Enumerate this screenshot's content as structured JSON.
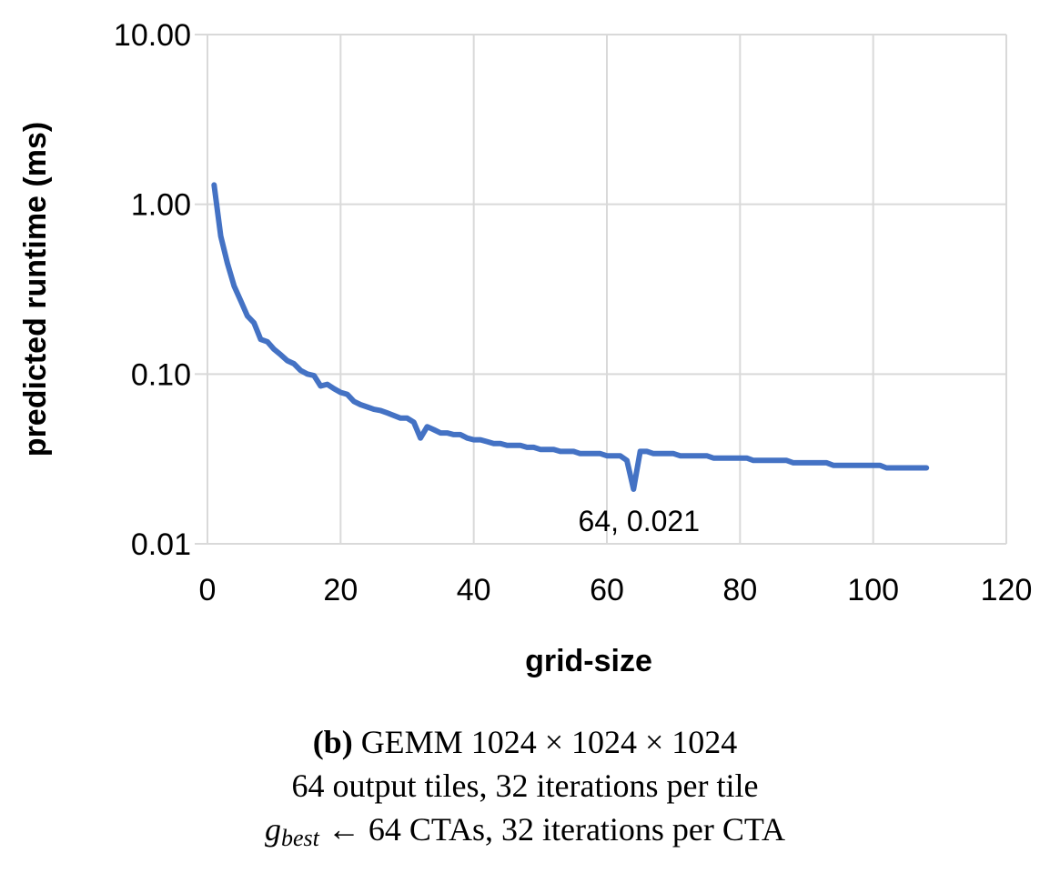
{
  "chart_data": {
    "type": "line",
    "xlabel": "grid-size",
    "ylabel": "predicted runtime (ms)",
    "xlim": [
      0,
      120
    ],
    "ylim": [
      0.01,
      10
    ],
    "yscale": "log",
    "xticks": [
      "0",
      "20",
      "40",
      "60",
      "80",
      "100",
      "120"
    ],
    "yticks": [
      "0.01",
      "0.10",
      "1.00",
      "10.00"
    ],
    "grid": true,
    "color": "#4472C4",
    "series": [
      {
        "x": [
          1,
          2,
          3,
          4,
          5,
          6,
          7,
          8,
          9,
          10,
          11,
          12,
          13,
          14,
          15,
          16,
          17,
          18,
          19,
          20,
          21,
          22,
          23,
          24,
          25,
          26,
          27,
          28,
          29,
          30,
          31,
          32,
          33,
          34,
          35,
          36,
          37,
          38,
          39,
          40,
          41,
          42,
          43,
          44,
          45,
          46,
          47,
          48,
          49,
          50,
          51,
          52,
          53,
          54,
          55,
          56,
          57,
          58,
          59,
          60,
          61,
          62,
          63,
          64,
          65,
          66,
          67,
          68,
          69,
          70,
          71,
          72,
          73,
          74,
          75,
          76,
          77,
          78,
          79,
          80,
          81,
          82,
          83,
          84,
          85,
          86,
          87,
          88,
          89,
          90,
          91,
          92,
          93,
          94,
          95,
          96,
          97,
          98,
          99,
          100,
          101,
          102,
          103,
          104,
          105,
          106,
          107,
          108
        ],
        "y": [
          1.3,
          0.65,
          0.45,
          0.33,
          0.27,
          0.22,
          0.2,
          0.16,
          0.155,
          0.14,
          0.13,
          0.12,
          0.115,
          0.105,
          0.1,
          0.098,
          0.085,
          0.087,
          0.082,
          0.078,
          0.076,
          0.069,
          0.066,
          0.064,
          0.062,
          0.061,
          0.059,
          0.057,
          0.055,
          0.055,
          0.052,
          0.042,
          0.049,
          0.047,
          0.045,
          0.045,
          0.044,
          0.044,
          0.042,
          0.041,
          0.041,
          0.04,
          0.039,
          0.039,
          0.038,
          0.038,
          0.038,
          0.037,
          0.037,
          0.036,
          0.036,
          0.036,
          0.035,
          0.035,
          0.035,
          0.034,
          0.034,
          0.034,
          0.034,
          0.033,
          0.033,
          0.033,
          0.031,
          0.021,
          0.035,
          0.035,
          0.034,
          0.034,
          0.034,
          0.034,
          0.033,
          0.033,
          0.033,
          0.033,
          0.033,
          0.032,
          0.032,
          0.032,
          0.032,
          0.032,
          0.032,
          0.031,
          0.031,
          0.031,
          0.031,
          0.031,
          0.031,
          0.03,
          0.03,
          0.03,
          0.03,
          0.03,
          0.03,
          0.029,
          0.029,
          0.029,
          0.029,
          0.029,
          0.029,
          0.029,
          0.029,
          0.028,
          0.028,
          0.028,
          0.028,
          0.028,
          0.028,
          0.028
        ]
      }
    ],
    "annotations": [
      {
        "text": "64, 0.021",
        "x": 64,
        "y": 0.021
      }
    ]
  },
  "caption": {
    "label": "(b)",
    "line1": "GEMM 1024 × 1024 × 1024",
    "line2": "64 output tiles, 32 iterations per tile",
    "line3_symbol": "g",
    "line3_subscript": "best",
    "line3_rest": "← 64 CTAs, 32 iterations per CTA"
  }
}
